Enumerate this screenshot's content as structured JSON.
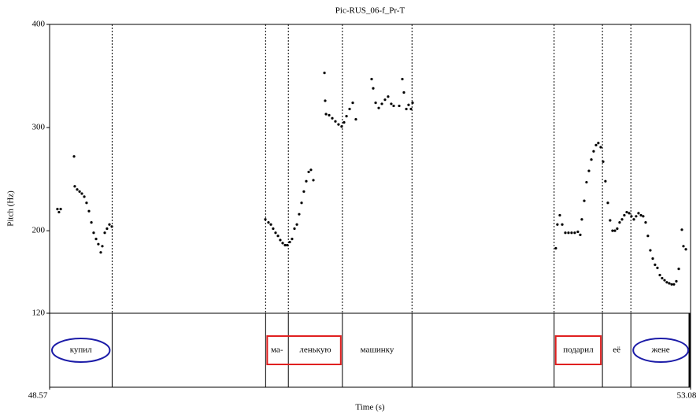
{
  "chart_data": {
    "type": "scatter",
    "title": "Pic-RUS_06-f_Pr-T",
    "x_label": "Time (s)",
    "y_label": "Pitch (Hz)",
    "xlim": [
      48.57,
      53.08
    ],
    "xticks": [
      48.57,
      53.08
    ],
    "ylim": [
      120,
      400
    ],
    "yticks": [
      120,
      200,
      300,
      400
    ],
    "color": "#000000",
    "x": [
      48.625,
      48.636,
      48.648,
      48.742,
      48.747,
      48.764,
      48.781,
      48.797,
      48.814,
      48.83,
      48.847,
      48.864,
      48.88,
      48.897,
      48.913,
      48.93,
      48.941,
      48.958,
      48.974,
      48.991,
      49.008,
      50.088,
      50.11,
      50.127,
      50.143,
      50.16,
      50.177,
      50.193,
      50.21,
      50.227,
      50.243,
      50.26,
      50.276,
      50.293,
      50.31,
      50.326,
      50.343,
      50.359,
      50.376,
      50.393,
      50.409,
      50.426,
      50.504,
      50.509,
      50.515,
      50.537,
      50.559,
      50.581,
      50.603,
      50.625,
      50.642,
      50.659,
      50.681,
      50.703,
      50.725,
      50.836,
      50.847,
      50.864,
      50.886,
      50.908,
      50.93,
      50.952,
      50.974,
      50.991,
      51.03,
      51.052,
      51.063,
      51.08,
      51.096,
      51.113,
      51.124,
      52.132,
      52.143,
      52.16,
      52.177,
      52.199,
      52.221,
      52.243,
      52.265,
      52.287,
      52.304,
      52.315,
      52.332,
      52.348,
      52.365,
      52.382,
      52.398,
      52.415,
      52.431,
      52.448,
      52.465,
      52.481,
      52.498,
      52.514,
      52.531,
      52.548,
      52.564,
      52.581,
      52.598,
      52.614,
      52.631,
      52.648,
      52.664,
      52.681,
      52.697,
      52.714,
      52.731,
      52.747,
      52.764,
      52.78,
      52.797,
      52.814,
      52.83,
      52.847,
      52.864,
      52.88,
      52.897,
      52.913,
      52.93,
      52.947,
      52.963,
      52.98,
      52.997,
      53.019,
      53.03,
      53.047
    ],
    "values": [
      221,
      218,
      221,
      272,
      243,
      240,
      238,
      236,
      233,
      227,
      219,
      208,
      198,
      192,
      187,
      179,
      185,
      198,
      202,
      206,
      204,
      211,
      208,
      206,
      202,
      198,
      195,
      191,
      188,
      186,
      186,
      189,
      192,
      202,
      206,
      216,
      227,
      238,
      248,
      257,
      259,
      249,
      353,
      326,
      313,
      312,
      309,
      306,
      303,
      301,
      305,
      311,
      318,
      324,
      308,
      347,
      338,
      324,
      319,
      323,
      327,
      330,
      323,
      321,
      321,
      347,
      334,
      318,
      322,
      318,
      324,
      183,
      206,
      215,
      206,
      198,
      198,
      198,
      198,
      199,
      196,
      211,
      229,
      247,
      258,
      269,
      277,
      283,
      285,
      281,
      267,
      248,
      227,
      210,
      200,
      200,
      202,
      208,
      211,
      215,
      218,
      217,
      214,
      211,
      214,
      217,
      215,
      214,
      208,
      195,
      181,
      173,
      167,
      164,
      157,
      154,
      152,
      150,
      149,
      148,
      148,
      151,
      163,
      201,
      185,
      182
    ],
    "tier": {
      "boundaries": [
        49.01,
        50.09,
        50.25,
        50.63,
        51.12,
        52.12,
        52.46,
        52.66
      ],
      "labels": [
        "купил",
        null,
        "ма-",
        "ленькую",
        "машинку",
        null,
        "подарил",
        "её",
        "жене"
      ],
      "highlights": [
        {
          "shape": "ellipse",
          "color": "#1c1ca8",
          "segments": [
            0
          ]
        },
        {
          "shape": "box",
          "color": "#e02020",
          "segments": [
            2,
            3
          ]
        },
        {
          "shape": "box",
          "color": "#e02020",
          "segments": [
            6
          ]
        },
        {
          "shape": "ellipse",
          "color": "#1c1ca8",
          "segments": [
            8
          ]
        }
      ]
    }
  }
}
